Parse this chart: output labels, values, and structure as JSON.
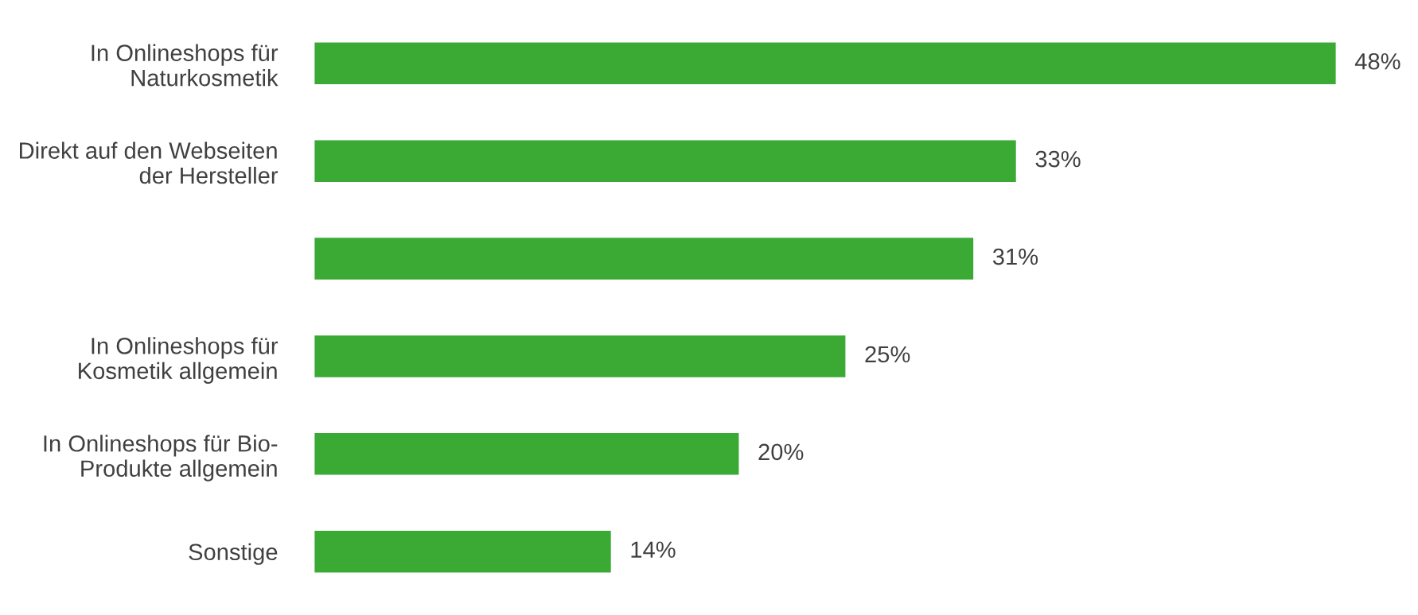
{
  "chart_data": {
    "type": "bar",
    "orientation": "horizontal",
    "categories": [
      "In Onlineshops für\nNaturkosmetik",
      "Direkt auf den Webseiten\nder Hersteller",
      null,
      "In Onlineshops für\nKosmetik allgemein",
      "In Onlineshops für Bio-\nProdukte allgemein",
      "Sonstige"
    ],
    "values": [
      48,
      33,
      31,
      25,
      20,
      14
    ],
    "value_labels": [
      "48%",
      "33%",
      "31%",
      "25%",
      "20%",
      "14%"
    ],
    "color": "#3aaa35",
    "grid": false,
    "legend": false
  }
}
